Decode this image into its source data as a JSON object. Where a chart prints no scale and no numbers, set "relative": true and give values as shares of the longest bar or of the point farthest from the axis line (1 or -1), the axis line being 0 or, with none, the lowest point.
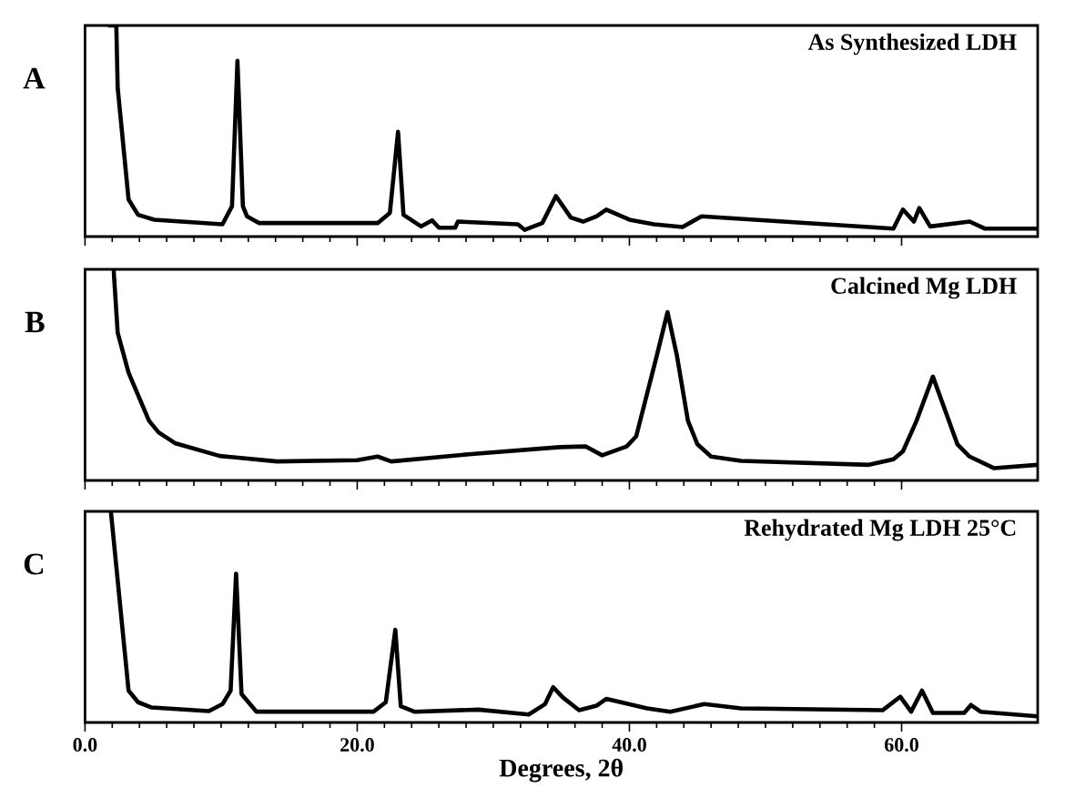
{
  "chart_data": [
    {
      "type": "line",
      "title": "As Synthesized LDH",
      "ylabel": "A",
      "relative": true,
      "xlim": [
        0,
        70
      ],
      "xticks": [
        0,
        20,
        40,
        60
      ],
      "tick_labels": false,
      "line_style": "solid",
      "series": [
        {
          "color": "#000000",
          "x": [
            1.7,
            2.3,
            2.4,
            3.2,
            3.9,
            5.1,
            10.1,
            10.8,
            11.2,
            11.6,
            11.9,
            12.8,
            21.5,
            22.4,
            23.0,
            23.4,
            24.7,
            25.5,
            26.0,
            27.2,
            27.4,
            31.8,
            32.3,
            33.6,
            34.6,
            35.7,
            36.6,
            37.6,
            38.3,
            40.0,
            41.8,
            43.9,
            45.3,
            59.4,
            60.1,
            60.9,
            61.3,
            62.1,
            65.0,
            66.1,
            70
          ],
          "values": [
            1.0,
            1.0,
            0.705,
            0.176,
            0.103,
            0.08,
            0.058,
            0.144,
            0.833,
            0.144,
            0.096,
            0.064,
            0.064,
            0.112,
            0.497,
            0.103,
            0.048,
            0.077,
            0.042,
            0.042,
            0.071,
            0.058,
            0.032,
            0.064,
            0.192,
            0.09,
            0.071,
            0.096,
            0.128,
            0.08,
            0.058,
            0.045,
            0.096,
            0.038,
            0.128,
            0.071,
            0.135,
            0.048,
            0.071,
            0.038,
            0.038
          ]
        }
      ]
    },
    {
      "type": "line",
      "title": "Calcined Mg LDH",
      "ylabel": "B",
      "relative": true,
      "xlim": [
        0,
        70
      ],
      "xticks": [
        0,
        20,
        40,
        60
      ],
      "tick_labels": false,
      "line_style": "solid",
      "series": [
        {
          "color": "#000000",
          "x": [
            2.1,
            2.4,
            3.2,
            4.7,
            5.4,
            6.6,
            9.9,
            14.1,
            20.0,
            21.5,
            22.5,
            28.4,
            34.9,
            36.8,
            38.0,
            39.8,
            40.5,
            42.0,
            42.8,
            43.5,
            44.3,
            45.0,
            46.0,
            48.2,
            57.6,
            59.4,
            60.1,
            61.1,
            62.3,
            64.1,
            65.0,
            66.8,
            70
          ],
          "values": [
            1.0,
            0.7,
            0.51,
            0.283,
            0.228,
            0.177,
            0.116,
            0.09,
            0.096,
            0.113,
            0.09,
            0.125,
            0.158,
            0.161,
            0.119,
            0.161,
            0.209,
            0.588,
            0.797,
            0.588,
            0.283,
            0.171,
            0.113,
            0.093,
            0.074,
            0.1,
            0.138,
            0.283,
            0.492,
            0.171,
            0.113,
            0.058,
            0.074
          ]
        }
      ]
    },
    {
      "type": "line",
      "title": "Rehydrated Mg LDH 25°C",
      "ylabel": "C",
      "xlabel": "Degrees, 2θ",
      "relative": true,
      "xlim": [
        0,
        70
      ],
      "xticks": [
        {
          "value": 0,
          "label": "0.0"
        },
        {
          "value": 20,
          "label": "20.0"
        },
        {
          "value": 40,
          "label": "40.0"
        },
        {
          "value": 60,
          "label": "60.0"
        }
      ],
      "tick_labels": "x",
      "line_style": "solid",
      "series": [
        {
          "color": "#000000",
          "x": [
            1.9,
            3.2,
            3.9,
            4.9,
            9.1,
            10.1,
            10.7,
            11.1,
            11.5,
            12.6,
            21.2,
            22.1,
            22.8,
            23.2,
            24.2,
            28.9,
            32.6,
            33.8,
            34.4,
            35.1,
            36.3,
            37.6,
            38.3,
            41.3,
            43.0,
            45.5,
            48.2,
            58.6,
            59.9,
            60.7,
            61.5,
            62.3,
            64.6,
            65.1,
            65.8,
            70
          ],
          "values": [
            1.0,
            0.151,
            0.096,
            0.071,
            0.054,
            0.087,
            0.151,
            0.705,
            0.135,
            0.051,
            0.051,
            0.096,
            0.439,
            0.077,
            0.051,
            0.061,
            0.038,
            0.087,
            0.167,
            0.119,
            0.058,
            0.08,
            0.112,
            0.067,
            0.051,
            0.087,
            0.067,
            0.058,
            0.122,
            0.051,
            0.151,
            0.045,
            0.045,
            0.083,
            0.051,
            0.029
          ]
        }
      ]
    }
  ]
}
